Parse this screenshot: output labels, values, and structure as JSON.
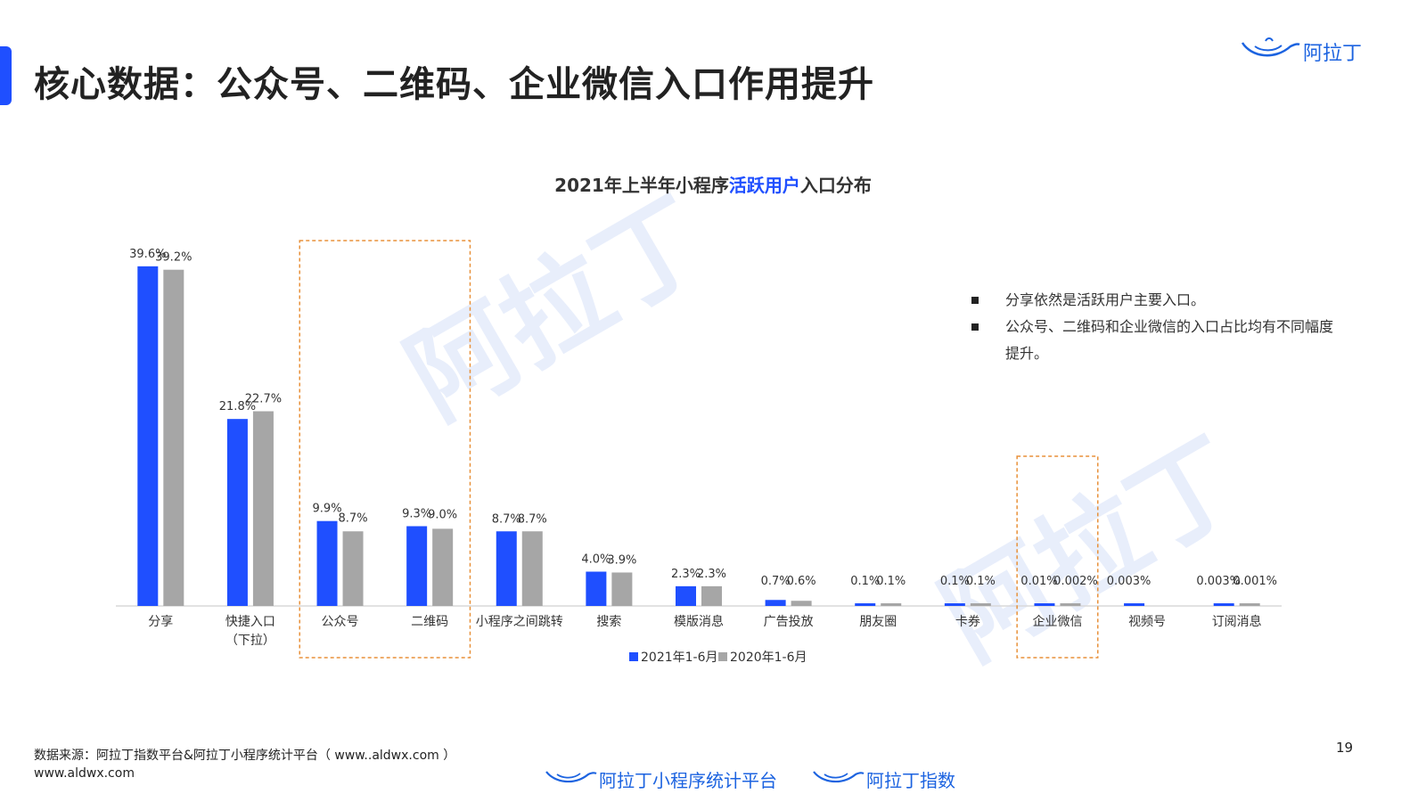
{
  "header": {
    "title": "核心数据：公众号、二维码、企业微信入口作用提升"
  },
  "brand": {
    "logo_text": "阿拉丁"
  },
  "watermark_text": "阿拉丁",
  "chart_data": {
    "type": "bar",
    "title_prefix": "2021年上半年小程序",
    "title_highlight": "活跃用户",
    "title_suffix": "入口分布",
    "categories": [
      "分享",
      "快捷入口\n（下拉）",
      "公众号",
      "二维码",
      "小程序之间跳转",
      "搜索",
      "模版消息",
      "广告投放",
      "朋友圈",
      "卡券",
      "企业微信",
      "视频号",
      "订阅消息"
    ],
    "series": [
      {
        "name": "2021年1-6月",
        "color": "#1f4fff",
        "values": [
          39.6,
          21.8,
          9.9,
          9.3,
          8.7,
          4.0,
          2.3,
          0.7,
          0.1,
          0.1,
          0.01,
          0.003,
          0.003
        ],
        "labels": [
          "39.6%",
          "21.8%",
          "9.9%",
          "9.3%",
          "8.7%",
          "4.0%",
          "2.3%",
          "0.7%",
          "0.1%",
          "0.1%",
          "0.01%",
          "0.003%",
          "0.003%"
        ]
      },
      {
        "name": "2020年1-6月",
        "color": "#a6a6a6",
        "values": [
          39.2,
          22.7,
          8.7,
          9.0,
          8.7,
          3.9,
          2.3,
          0.6,
          0.1,
          0.1,
          0.002,
          null,
          0.001
        ],
        "labels": [
          "39.2%",
          "22.7%",
          "8.7%",
          "9.0%",
          "8.7%",
          "3.9%",
          "2.3%",
          "0.6%",
          "0.1%",
          "0.1%",
          "0.002%",
          "",
          "0.001%"
        ]
      }
    ],
    "ylim": [
      0,
      40
    ],
    "grid": false,
    "legend_position": "bottom",
    "highlight_boxes": [
      {
        "categories": [
          "公众号",
          "二维码"
        ],
        "color": "#e8913a"
      },
      {
        "categories": [
          "企业微信"
        ],
        "color": "#e8913a"
      }
    ]
  },
  "notes": [
    "分享依然是活跃用户主要入口。",
    "公众号、二维码和企业微信的入口占比均有不同幅度提升。"
  ],
  "footer": {
    "source_line1": "数据来源：阿拉丁指数平台&阿拉丁小程序统计平台（ www..aldwx.com ）",
    "source_line2": "www.aldwx.com",
    "page_number": "19",
    "logo1_text": "阿拉丁小程序统计平台",
    "logo2_text": "阿拉丁指数"
  }
}
